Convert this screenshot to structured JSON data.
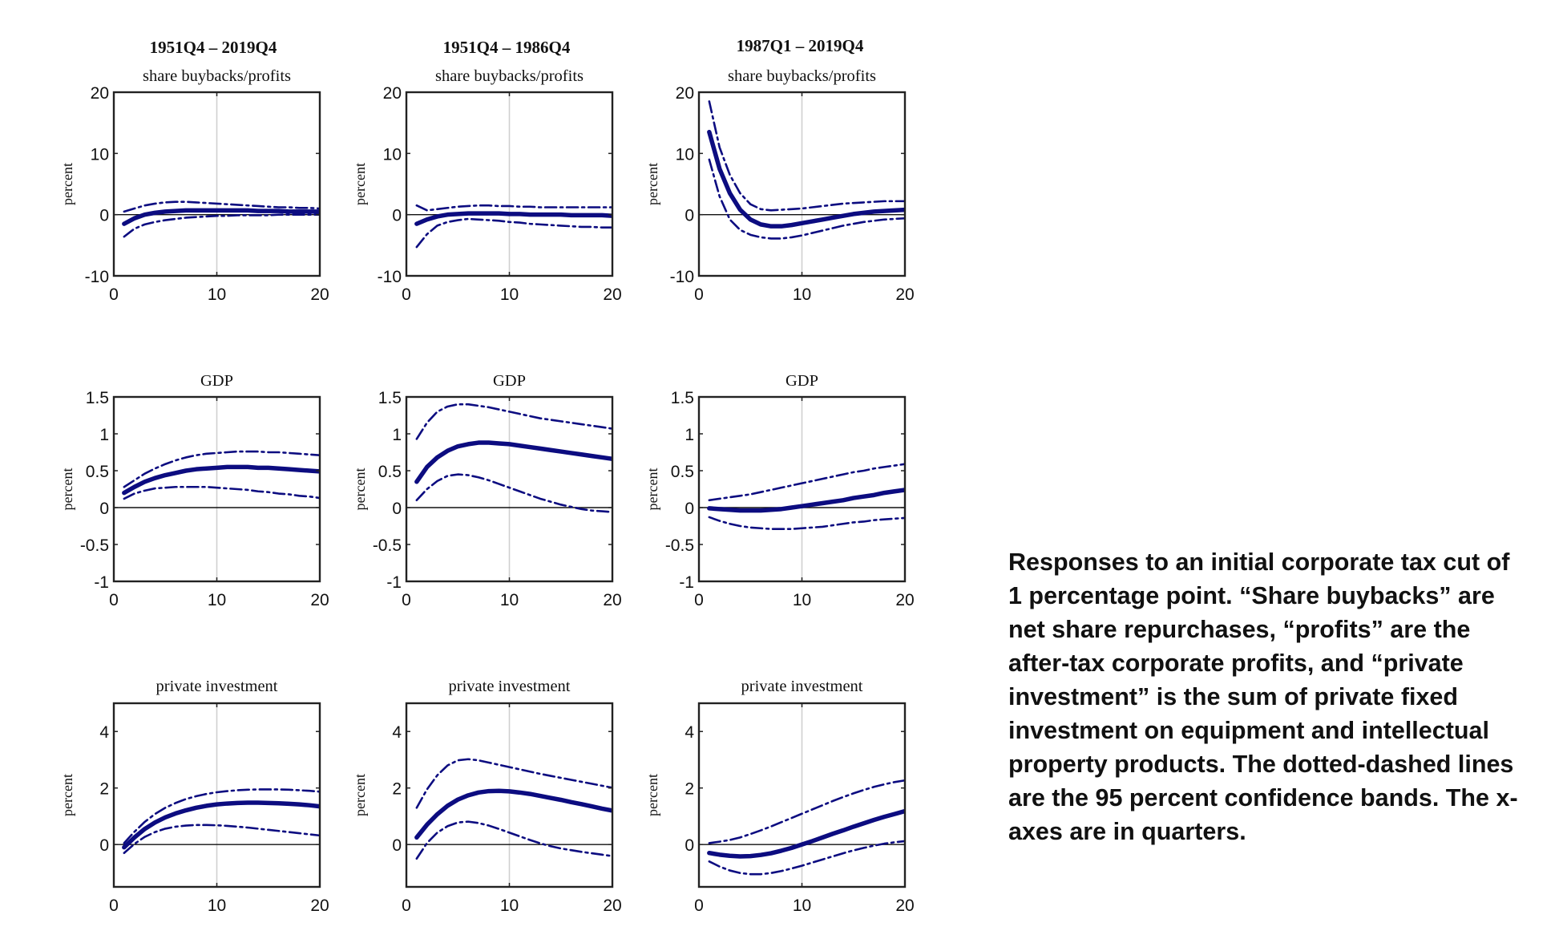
{
  "caption": "Responses to an initial corporate tax cut of 1 percentage point. “Share buybacks” are net share repurchases, “profits” are the after-tax corporate profits, and “private investment” is the sum of private fixed investment on equipment and intellectual property products. The dotted-dashed lines are the 95 percent confidence bands. The x-axes are in quarters.",
  "colors": {
    "line": "#0c0c80",
    "axis": "#222222",
    "grid": "#d0d0d0",
    "zero": "#111111"
  },
  "column_headers": [
    "1951Q4 – 2019Q4",
    "1951Q4 – 1986Q4",
    "1987Q1 – 2019Q4"
  ],
  "chart_data": [
    {
      "id": "r0c0",
      "type": "line",
      "title": "share buybacks/profits",
      "ylabel": "percent",
      "xlabel": "",
      "xlim": [
        0,
        20
      ],
      "ylim": [
        -10,
        20
      ],
      "xticks": [
        0,
        10,
        20
      ],
      "yticks": [
        -10,
        0,
        10,
        20
      ],
      "x": [
        1,
        2,
        3,
        4,
        5,
        6,
        7,
        8,
        9,
        10,
        11,
        12,
        13,
        14,
        15,
        16,
        17,
        18,
        19,
        20
      ],
      "series": [
        {
          "name": "response",
          "style": "solid",
          "values": [
            -1.5,
            -0.6,
            0,
            0.3,
            0.5,
            0.6,
            0.7,
            0.7,
            0.7,
            0.7,
            0.7,
            0.7,
            0.7,
            0.6,
            0.6,
            0.6,
            0.5,
            0.5,
            0.5,
            0.5
          ]
        },
        {
          "name": "upper 95% band",
          "style": "dashdot",
          "values": [
            0.5,
            1.0,
            1.5,
            1.8,
            2.0,
            2.1,
            2.1,
            2.0,
            1.9,
            1.8,
            1.7,
            1.6,
            1.5,
            1.4,
            1.3,
            1.2,
            1.2,
            1.1,
            1.1,
            1.0
          ]
        },
        {
          "name": "lower 95% band",
          "style": "dashdot",
          "values": [
            -3.6,
            -2.3,
            -1.6,
            -1.2,
            -0.9,
            -0.7,
            -0.5,
            -0.4,
            -0.3,
            -0.2,
            -0.2,
            -0.1,
            -0.1,
            -0.1,
            -0.1,
            0,
            0,
            0,
            0,
            0
          ]
        }
      ]
    },
    {
      "id": "r0c1",
      "type": "line",
      "title": "share buybacks/profits",
      "ylabel": "percent",
      "xlabel": "",
      "xlim": [
        0,
        20
      ],
      "ylim": [
        -10,
        20
      ],
      "xticks": [
        0,
        10,
        20
      ],
      "yticks": [
        -10,
        0,
        10,
        20
      ],
      "x": [
        1,
        2,
        3,
        4,
        5,
        6,
        7,
        8,
        9,
        10,
        11,
        12,
        13,
        14,
        15,
        16,
        17,
        18,
        19,
        20
      ],
      "series": [
        {
          "name": "response",
          "style": "solid",
          "values": [
            -1.5,
            -0.8,
            -0.3,
            0,
            0.1,
            0.2,
            0.2,
            0.2,
            0.2,
            0.1,
            0.1,
            0,
            0,
            0,
            0,
            -0.1,
            -0.1,
            -0.1,
            -0.1,
            -0.2
          ]
        },
        {
          "name": "upper 95% band",
          "style": "dashdot",
          "values": [
            1.5,
            0.7,
            0.9,
            1.1,
            1.3,
            1.4,
            1.5,
            1.5,
            1.4,
            1.4,
            1.3,
            1.3,
            1.2,
            1.2,
            1.2,
            1.2,
            1.2,
            1.2,
            1.2,
            1.2
          ]
        },
        {
          "name": "lower 95% band",
          "style": "dashdot",
          "values": [
            -5.3,
            -3.2,
            -1.8,
            -1.2,
            -0.9,
            -0.7,
            -0.8,
            -0.9,
            -1.0,
            -1.2,
            -1.3,
            -1.5,
            -1.6,
            -1.7,
            -1.8,
            -1.9,
            -2.0,
            -2.0,
            -2.1,
            -2.1
          ]
        }
      ]
    },
    {
      "id": "r0c2",
      "type": "line",
      "title": "share buybacks/profits",
      "ylabel": "percent",
      "xlabel": "",
      "xlim": [
        0,
        20
      ],
      "ylim": [
        -10,
        20
      ],
      "xticks": [
        0,
        10,
        20
      ],
      "yticks": [
        -10,
        0,
        10,
        20
      ],
      "x": [
        1,
        2,
        3,
        4,
        5,
        6,
        7,
        8,
        9,
        10,
        11,
        12,
        13,
        14,
        15,
        16,
        17,
        18,
        19,
        20
      ],
      "series": [
        {
          "name": "response",
          "style": "solid",
          "values": [
            13.5,
            7.5,
            3.5,
            0.8,
            -0.8,
            -1.6,
            -1.9,
            -1.9,
            -1.7,
            -1.4,
            -1.1,
            -0.8,
            -0.5,
            -0.2,
            0.1,
            0.3,
            0.5,
            0.6,
            0.7,
            0.8
          ]
        },
        {
          "name": "upper 95% band",
          "style": "dashdot",
          "values": [
            18.5,
            11,
            6.5,
            3.5,
            1.7,
            0.9,
            0.7,
            0.8,
            0.9,
            1.0,
            1.2,
            1.4,
            1.6,
            1.8,
            1.9,
            2.0,
            2.1,
            2.2,
            2.2,
            2.2
          ]
        },
        {
          "name": "lower 95% band",
          "style": "dashdot",
          "values": [
            9,
            3,
            -0.8,
            -2.5,
            -3.3,
            -3.7,
            -3.9,
            -3.9,
            -3.7,
            -3.4,
            -3.0,
            -2.6,
            -2.2,
            -1.8,
            -1.5,
            -1.2,
            -1.0,
            -0.8,
            -0.7,
            -0.6
          ]
        }
      ]
    },
    {
      "id": "r1c0",
      "type": "line",
      "title": "GDP",
      "ylabel": "percent",
      "xlabel": "",
      "xlim": [
        0,
        20
      ],
      "ylim": [
        -1,
        1.5
      ],
      "xticks": [
        0,
        10,
        20
      ],
      "yticks": [
        -1,
        -0.5,
        0,
        0.5,
        1,
        1.5
      ],
      "x": [
        1,
        2,
        3,
        4,
        5,
        6,
        7,
        8,
        9,
        10,
        11,
        12,
        13,
        14,
        15,
        16,
        17,
        18,
        19,
        20
      ],
      "series": [
        {
          "name": "response",
          "style": "solid",
          "values": [
            0.2,
            0.28,
            0.35,
            0.4,
            0.44,
            0.47,
            0.5,
            0.52,
            0.53,
            0.54,
            0.55,
            0.55,
            0.55,
            0.54,
            0.54,
            0.53,
            0.52,
            0.51,
            0.5,
            0.49
          ]
        },
        {
          "name": "upper 95% band",
          "style": "dashdot",
          "values": [
            0.28,
            0.37,
            0.46,
            0.53,
            0.59,
            0.64,
            0.68,
            0.71,
            0.73,
            0.74,
            0.75,
            0.76,
            0.76,
            0.76,
            0.75,
            0.75,
            0.74,
            0.73,
            0.72,
            0.71
          ]
        },
        {
          "name": "lower 95% band",
          "style": "dashdot",
          "values": [
            0.12,
            0.19,
            0.23,
            0.26,
            0.27,
            0.28,
            0.28,
            0.28,
            0.28,
            0.27,
            0.26,
            0.25,
            0.24,
            0.22,
            0.21,
            0.19,
            0.18,
            0.16,
            0.15,
            0.13
          ]
        }
      ]
    },
    {
      "id": "r1c1",
      "type": "line",
      "title": "GDP",
      "ylabel": "percent",
      "xlabel": "",
      "xlim": [
        0,
        20
      ],
      "ylim": [
        -1,
        1.5
      ],
      "xticks": [
        0,
        10,
        20
      ],
      "yticks": [
        -1,
        -0.5,
        0,
        0.5,
        1,
        1.5
      ],
      "x": [
        1,
        2,
        3,
        4,
        5,
        6,
        7,
        8,
        9,
        10,
        11,
        12,
        13,
        14,
        15,
        16,
        17,
        18,
        19,
        20
      ],
      "series": [
        {
          "name": "response",
          "style": "solid",
          "values": [
            0.35,
            0.55,
            0.68,
            0.77,
            0.83,
            0.86,
            0.88,
            0.88,
            0.87,
            0.86,
            0.84,
            0.82,
            0.8,
            0.78,
            0.76,
            0.74,
            0.72,
            0.7,
            0.68,
            0.66
          ]
        },
        {
          "name": "upper 95% band",
          "style": "dashdot",
          "values": [
            0.93,
            1.15,
            1.3,
            1.37,
            1.4,
            1.4,
            1.38,
            1.36,
            1.33,
            1.3,
            1.27,
            1.24,
            1.21,
            1.19,
            1.17,
            1.15,
            1.13,
            1.11,
            1.09,
            1.07
          ]
        },
        {
          "name": "lower 95% band",
          "style": "dashdot",
          "values": [
            0.1,
            0.25,
            0.36,
            0.43,
            0.45,
            0.44,
            0.41,
            0.37,
            0.32,
            0.27,
            0.22,
            0.17,
            0.12,
            0.08,
            0.04,
            0.01,
            -0.02,
            -0.04,
            -0.05,
            -0.06
          ]
        }
      ]
    },
    {
      "id": "r1c2",
      "type": "line",
      "title": "GDP",
      "ylabel": "percent",
      "xlabel": "",
      "xlim": [
        0,
        20
      ],
      "ylim": [
        -1,
        1.5
      ],
      "xticks": [
        0,
        10,
        20
      ],
      "yticks": [
        -1,
        -0.5,
        0,
        0.5,
        1,
        1.5
      ],
      "x": [
        1,
        2,
        3,
        4,
        5,
        6,
        7,
        8,
        9,
        10,
        11,
        12,
        13,
        14,
        15,
        16,
        17,
        18,
        19,
        20
      ],
      "series": [
        {
          "name": "response",
          "style": "solid",
          "values": [
            -0.01,
            -0.02,
            -0.03,
            -0.04,
            -0.04,
            -0.04,
            -0.03,
            -0.02,
            0,
            0.02,
            0.04,
            0.06,
            0.08,
            0.1,
            0.13,
            0.15,
            0.17,
            0.2,
            0.22,
            0.24
          ]
        },
        {
          "name": "upper 95% band",
          "style": "dashdot",
          "values": [
            0.1,
            0.12,
            0.14,
            0.16,
            0.18,
            0.21,
            0.24,
            0.27,
            0.3,
            0.33,
            0.36,
            0.39,
            0.42,
            0.45,
            0.48,
            0.5,
            0.53,
            0.55,
            0.57,
            0.59
          ]
        },
        {
          "name": "lower 95% band",
          "style": "dashdot",
          "values": [
            -0.13,
            -0.18,
            -0.22,
            -0.25,
            -0.27,
            -0.28,
            -0.29,
            -0.29,
            -0.29,
            -0.28,
            -0.27,
            -0.26,
            -0.24,
            -0.22,
            -0.2,
            -0.19,
            -0.17,
            -0.16,
            -0.15,
            -0.14
          ]
        }
      ]
    },
    {
      "id": "r2c0",
      "type": "line",
      "title": "private investment",
      "ylabel": "percent",
      "xlabel": "",
      "xlim": [
        0,
        20
      ],
      "ylim": [
        -1.5,
        5
      ],
      "xticks": [
        0,
        10,
        20
      ],
      "yticks": [
        0,
        2,
        4
      ],
      "x": [
        1,
        2,
        3,
        4,
        5,
        6,
        7,
        8,
        9,
        10,
        11,
        12,
        13,
        14,
        15,
        16,
        17,
        18,
        19,
        20
      ],
      "series": [
        {
          "name": "response",
          "style": "solid",
          "values": [
            -0.1,
            0.25,
            0.55,
            0.78,
            0.96,
            1.1,
            1.21,
            1.3,
            1.37,
            1.42,
            1.45,
            1.47,
            1.48,
            1.48,
            1.47,
            1.46,
            1.44,
            1.42,
            1.39,
            1.35
          ]
        },
        {
          "name": "upper 95% band",
          "style": "dashdot",
          "values": [
            0.05,
            0.45,
            0.8,
            1.08,
            1.3,
            1.47,
            1.61,
            1.71,
            1.79,
            1.85,
            1.89,
            1.92,
            1.94,
            1.95,
            1.95,
            1.95,
            1.94,
            1.92,
            1.9,
            1.87
          ]
        },
        {
          "name": "lower 95% band",
          "style": "dashdot",
          "values": [
            -0.3,
            0.02,
            0.27,
            0.44,
            0.56,
            0.63,
            0.67,
            0.69,
            0.69,
            0.68,
            0.66,
            0.63,
            0.6,
            0.56,
            0.52,
            0.48,
            0.44,
            0.4,
            0.36,
            0.32
          ]
        }
      ]
    },
    {
      "id": "r2c1",
      "type": "line",
      "title": "private investment",
      "ylabel": "percent",
      "xlabel": "",
      "xlim": [
        0,
        20
      ],
      "ylim": [
        -1.5,
        5
      ],
      "xticks": [
        0,
        10,
        20
      ],
      "yticks": [
        0,
        2,
        4
      ],
      "x": [
        1,
        2,
        3,
        4,
        5,
        6,
        7,
        8,
        9,
        10,
        11,
        12,
        13,
        14,
        15,
        16,
        17,
        18,
        19,
        20
      ],
      "series": [
        {
          "name": "response",
          "style": "solid",
          "values": [
            0.25,
            0.7,
            1.07,
            1.37,
            1.59,
            1.74,
            1.84,
            1.89,
            1.9,
            1.88,
            1.84,
            1.79,
            1.72,
            1.65,
            1.58,
            1.5,
            1.43,
            1.35,
            1.27,
            1.2
          ]
        },
        {
          "name": "upper 95% band",
          "style": "dashdot",
          "values": [
            1.3,
            1.95,
            2.45,
            2.8,
            2.98,
            3.02,
            2.98,
            2.9,
            2.82,
            2.74,
            2.66,
            2.58,
            2.5,
            2.43,
            2.36,
            2.29,
            2.22,
            2.15,
            2.08,
            2.01
          ]
        },
        {
          "name": "lower 95% band",
          "style": "dashdot",
          "values": [
            -0.5,
            0.05,
            0.42,
            0.65,
            0.78,
            0.81,
            0.76,
            0.67,
            0.55,
            0.42,
            0.29,
            0.16,
            0.04,
            -0.06,
            -0.14,
            -0.2,
            -0.26,
            -0.31,
            -0.36,
            -0.41
          ]
        }
      ]
    },
    {
      "id": "r2c2",
      "type": "line",
      "title": "private investment",
      "ylabel": "percent",
      "xlabel": "",
      "xlim": [
        0,
        20
      ],
      "ylim": [
        -1.5,
        5
      ],
      "xticks": [
        0,
        10,
        20
      ],
      "yticks": [
        0,
        2,
        4
      ],
      "x": [
        1,
        2,
        3,
        4,
        5,
        6,
        7,
        8,
        9,
        10,
        11,
        12,
        13,
        14,
        15,
        16,
        17,
        18,
        19,
        20
      ],
      "series": [
        {
          "name": "response",
          "style": "solid",
          "values": [
            -0.3,
            -0.36,
            -0.4,
            -0.42,
            -0.41,
            -0.37,
            -0.31,
            -0.22,
            -0.12,
            0,
            0.12,
            0.25,
            0.38,
            0.5,
            0.63,
            0.75,
            0.87,
            0.98,
            1.08,
            1.18
          ]
        },
        {
          "name": "upper 95% band",
          "style": "dashdot",
          "values": [
            0.05,
            0.1,
            0.16,
            0.25,
            0.37,
            0.5,
            0.64,
            0.79,
            0.94,
            1.09,
            1.24,
            1.39,
            1.54,
            1.68,
            1.81,
            1.93,
            2.04,
            2.13,
            2.21,
            2.27
          ]
        },
        {
          "name": "lower 95% band",
          "style": "dashdot",
          "values": [
            -0.6,
            -0.78,
            -0.92,
            -1.01,
            -1.05,
            -1.05,
            -1.01,
            -0.94,
            -0.85,
            -0.75,
            -0.64,
            -0.53,
            -0.42,
            -0.31,
            -0.21,
            -0.12,
            -0.04,
            0.03,
            0.08,
            0.12
          ]
        }
      ]
    }
  ]
}
